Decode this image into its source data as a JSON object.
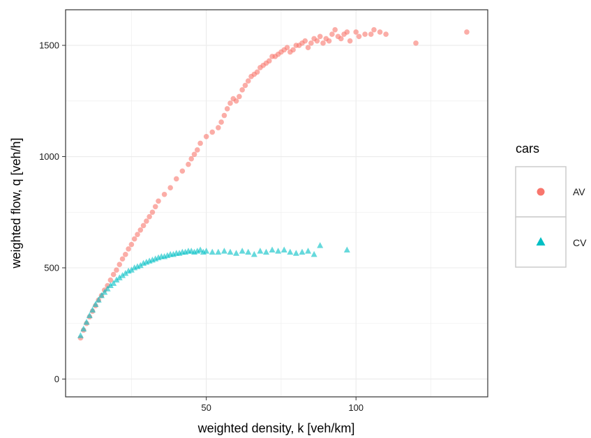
{
  "chart_data": {
    "type": "scatter",
    "title": "",
    "xlabel": "weighted density, k [veh/km]",
    "ylabel": "weighted flow, q [veh/h]",
    "xlim": [
      3,
      144
    ],
    "ylim": [
      -80,
      1660
    ],
    "x_ticks": [
      50,
      100
    ],
    "y_ticks": [
      0,
      500,
      1000,
      1500
    ],
    "grid": true,
    "legend": {
      "title": "cars",
      "placement": "right",
      "entries": [
        "AV",
        "CV"
      ]
    },
    "colors": {
      "AV": "#F8766D",
      "CV": "#00BFC4"
    },
    "series": [
      {
        "name": "AV",
        "marker": "circle",
        "color": "#F8766D",
        "x": [
          8,
          9,
          10,
          11,
          12,
          13,
          14,
          15,
          16,
          17,
          18,
          19,
          20,
          21,
          22,
          23,
          24,
          25,
          26,
          27,
          28,
          29,
          30,
          31,
          32,
          33,
          34,
          36,
          38,
          40,
          42,
          44,
          45,
          46,
          47,
          48,
          50,
          52,
          54,
          55,
          56,
          57,
          58,
          59,
          60,
          61,
          62,
          63,
          64,
          65,
          66,
          67,
          68,
          69,
          70,
          71,
          72,
          73,
          74,
          75,
          76,
          77,
          78,
          79,
          80,
          81,
          82,
          83,
          84,
          85,
          86,
          87,
          88,
          89,
          90,
          91,
          92,
          93,
          94,
          95,
          96,
          97,
          98,
          100,
          101,
          103,
          105,
          106,
          108,
          110,
          120,
          137
        ],
        "y": [
          185,
          220,
          250,
          280,
          305,
          330,
          355,
          375,
          400,
          420,
          445,
          470,
          490,
          515,
          540,
          560,
          585,
          605,
          630,
          650,
          670,
          690,
          710,
          730,
          750,
          775,
          800,
          830,
          860,
          900,
          935,
          965,
          990,
          1010,
          1030,
          1060,
          1090,
          1110,
          1130,
          1155,
          1185,
          1215,
          1240,
          1260,
          1250,
          1270,
          1300,
          1320,
          1340,
          1360,
          1370,
          1380,
          1400,
          1410,
          1420,
          1430,
          1450,
          1450,
          1460,
          1470,
          1480,
          1490,
          1470,
          1480,
          1500,
          1500,
          1510,
          1520,
          1490,
          1510,
          1530,
          1520,
          1540,
          1510,
          1530,
          1520,
          1550,
          1570,
          1540,
          1530,
          1550,
          1560,
          1520,
          1560,
          1540,
          1550,
          1550,
          1570,
          1560,
          1550,
          1510,
          1560
        ]
      },
      {
        "name": "CV",
        "marker": "triangle",
        "color": "#00BFC4",
        "x": [
          8,
          9,
          10,
          11,
          12,
          13,
          14,
          15,
          16,
          17,
          18,
          19,
          20,
          21,
          22,
          23,
          24,
          25,
          26,
          27,
          28,
          29,
          30,
          31,
          32,
          33,
          34,
          35,
          36,
          37,
          38,
          39,
          40,
          41,
          42,
          43,
          44,
          45,
          46,
          47,
          48,
          49,
          50,
          52,
          54,
          56,
          58,
          60,
          62,
          64,
          66,
          68,
          70,
          72,
          74,
          76,
          78,
          80,
          82,
          84,
          86,
          88,
          97
        ],
        "y": [
          195,
          225,
          255,
          285,
          310,
          335,
          355,
          375,
          390,
          405,
          420,
          430,
          445,
          455,
          465,
          475,
          485,
          490,
          500,
          505,
          510,
          520,
          525,
          530,
          535,
          540,
          545,
          550,
          550,
          555,
          560,
          560,
          565,
          565,
          570,
          570,
          575,
          575,
          570,
          575,
          580,
          570,
          575,
          570,
          570,
          575,
          570,
          565,
          575,
          570,
          560,
          575,
          570,
          580,
          575,
          580,
          570,
          565,
          570,
          575,
          560,
          600,
          580
        ]
      }
    ]
  }
}
